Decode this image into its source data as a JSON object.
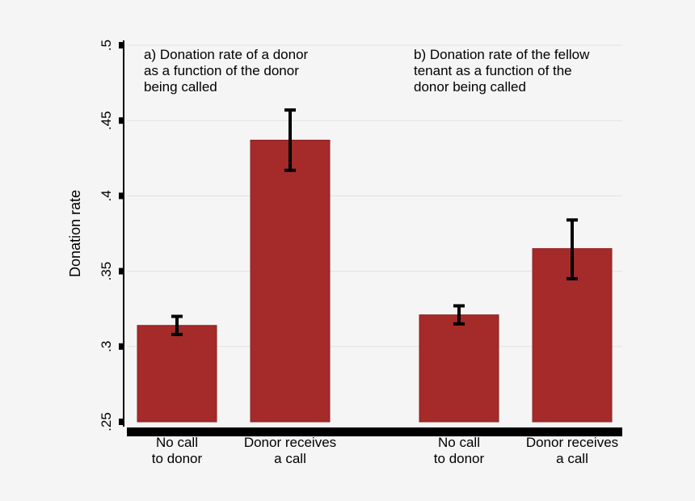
{
  "chart_data": {
    "type": "bar",
    "ylabel": "Donation rate",
    "ylim": [
      0.25,
      0.5
    ],
    "y_ticks": [
      0.25,
      0.3,
      0.35,
      0.4,
      0.45,
      0.5
    ],
    "y_tick_labels": [
      ".25",
      ".3",
      ".35",
      ".4",
      ".45",
      ".5"
    ],
    "grid": true,
    "bar_color": "#a52a2a",
    "panels": [
      {
        "title_lines": [
          "a) Donation rate of a donor",
          "as a function of the donor",
          "being called"
        ],
        "categories": [
          {
            "lines": [
              "No call",
              "to donor"
            ]
          },
          {
            "lines": [
              "Donor receives",
              "a call"
            ]
          }
        ],
        "values": [
          0.314,
          0.437
        ],
        "ci_low": [
          0.308,
          0.417
        ],
        "ci_high": [
          0.32,
          0.457
        ]
      },
      {
        "title_lines": [
          "b) Donation rate of the fellow",
          "tenant as a function of the",
          "donor being called"
        ],
        "categories": [
          {
            "lines": [
              "No call",
              "to donor"
            ]
          },
          {
            "lines": [
              "Donor receives",
              "a call"
            ]
          }
        ],
        "values": [
          0.321,
          0.365
        ],
        "ci_low": [
          0.315,
          0.345
        ],
        "ci_high": [
          0.327,
          0.384
        ]
      }
    ]
  }
}
